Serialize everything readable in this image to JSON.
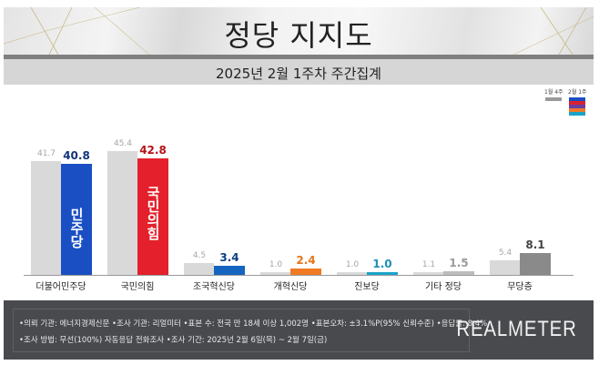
{
  "header": {
    "title": "정당 지지도",
    "subtitle": "2025년 2월 1주차 주간집계"
  },
  "legend": {
    "items": [
      {
        "label": "1월 4주",
        "colors": [
          "#9a9a9a"
        ]
      },
      {
        "label": "2월 1주",
        "colors": [
          "#1a4fc4",
          "#d9222e",
          "#6b3fa0",
          "#ef7a2a",
          "#1aa3c8"
        ]
      }
    ]
  },
  "chart_data": {
    "type": "bar",
    "title": "정당 지지도",
    "subtitle": "2025년 2월 1주차 주간집계",
    "xlabel": "",
    "ylabel": "",
    "ylim": [
      0,
      50
    ],
    "grid": false,
    "legend_position": "top-right",
    "categories": [
      "더불어민주당",
      "국민의힘",
      "조국혁신당",
      "개혁신당",
      "진보당",
      "기타 정당",
      "무당층"
    ],
    "series": [
      {
        "name": "1월 4주",
        "values": [
          41.7,
          45.4,
          4.5,
          1.0,
          1.0,
          1.1,
          5.4
        ],
        "color": "#d9d9d9"
      },
      {
        "name": "2월 1주",
        "values": [
          40.8,
          42.8,
          3.4,
          2.4,
          1.0,
          1.5,
          8.1
        ],
        "colors": [
          "#1a4fc4",
          "#e3202b",
          "#1565c0",
          "#f07b22",
          "#1aa3c8",
          "#bdbdbd",
          "#8a8a8a"
        ],
        "label_colors": [
          "#13337a",
          "#b5121b",
          "#0d3f86",
          "#e8751c",
          "#1a8fb5",
          "#9a9a9a",
          "#444444"
        ]
      }
    ],
    "bar_labels": {
      "prev": [
        "41.7",
        "45.4",
        "4.5",
        "1.0",
        "1.0",
        "1.1",
        "5.4"
      ],
      "cur": [
        "40.8",
        "42.8",
        "3.4",
        "2.4",
        "1.0",
        "1.5",
        "8.1"
      ]
    },
    "bar_inner_logos": [
      "민주당",
      "국민의힘"
    ]
  },
  "footer": {
    "line1": "•의뢰 기관: 에너지경제신문  •조사 기관: 리얼미터 •표본 수: 전국 만 18세 이상 1,002명 •표본오차: ±3.1%P(95% 신뢰수준) •응답률: 8.4%",
    "line2": "•조사 방법: 무선(100%) 자동응답 전화조사 •조사 기간: 2025년 2월 6일(목) ~ 2월 7일(금)",
    "brand": "REALMETER"
  }
}
